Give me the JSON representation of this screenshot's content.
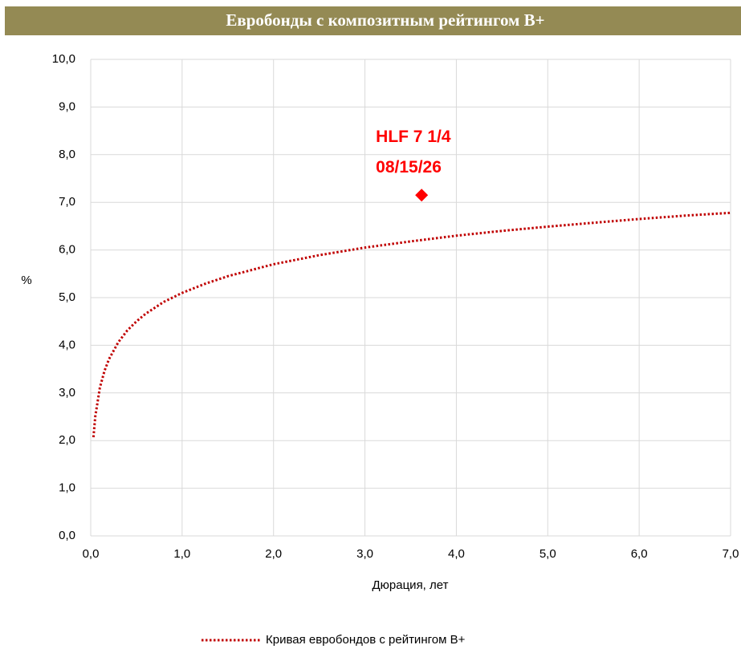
{
  "chart_data": {
    "type": "line",
    "title": "Евробонды с композитным рейтингом B+",
    "title_background": "#948a54",
    "xlabel": "Дюрация, лет",
    "ylabel": "%",
    "xlim": [
      0,
      7
    ],
    "ylim": [
      0,
      10
    ],
    "grid": true,
    "legend": "bottom",
    "xticks": [
      {
        "value": 0,
        "label": "0,0"
      },
      {
        "value": 1,
        "label": "1,0"
      },
      {
        "value": 2,
        "label": "2,0"
      },
      {
        "value": 3,
        "label": "3,0"
      },
      {
        "value": 4,
        "label": "4,0"
      },
      {
        "value": 5,
        "label": "5,0"
      },
      {
        "value": 6,
        "label": "6,0"
      },
      {
        "value": 7,
        "label": "7,0"
      }
    ],
    "yticks": [
      {
        "value": 0,
        "label": "0,0"
      },
      {
        "value": 1,
        "label": "1,0"
      },
      {
        "value": 2,
        "label": "2,0"
      },
      {
        "value": 3,
        "label": "3,0"
      },
      {
        "value": 4,
        "label": "4,0"
      },
      {
        "value": 5,
        "label": "5,0"
      },
      {
        "value": 6,
        "label": "6,0"
      },
      {
        "value": 7,
        "label": "7,0"
      },
      {
        "value": 8,
        "label": "8,0"
      },
      {
        "value": 9,
        "label": "9,0"
      },
      {
        "value": 10,
        "label": "10,0"
      }
    ],
    "series": [
      {
        "name": "Кривая евробондов с рейтингом B+",
        "color": "#c00000",
        "style": "dotted",
        "x": [
          0.03,
          0.05,
          0.1,
          0.15,
          0.2,
          0.3,
          0.4,
          0.5,
          0.6,
          0.8,
          1,
          1.25,
          1.5,
          2,
          2.5,
          3,
          3.5,
          4,
          4.5,
          5,
          5.5,
          6,
          6.5,
          7
        ],
        "values": [
          2.07,
          2.51,
          3.11,
          3.46,
          3.71,
          4.06,
          4.31,
          4.5,
          4.66,
          4.91,
          5.1,
          5.29,
          5.45,
          5.7,
          5.89,
          6.05,
          6.18,
          6.3,
          6.4,
          6.49,
          6.57,
          6.65,
          6.72,
          6.78
        ]
      }
    ],
    "points": [
      {
        "x": 3.62,
        "y": 7.15,
        "color": "#ff0000",
        "label": [
          "HLF 7 1/4",
          "08/15/26"
        ]
      }
    ]
  }
}
